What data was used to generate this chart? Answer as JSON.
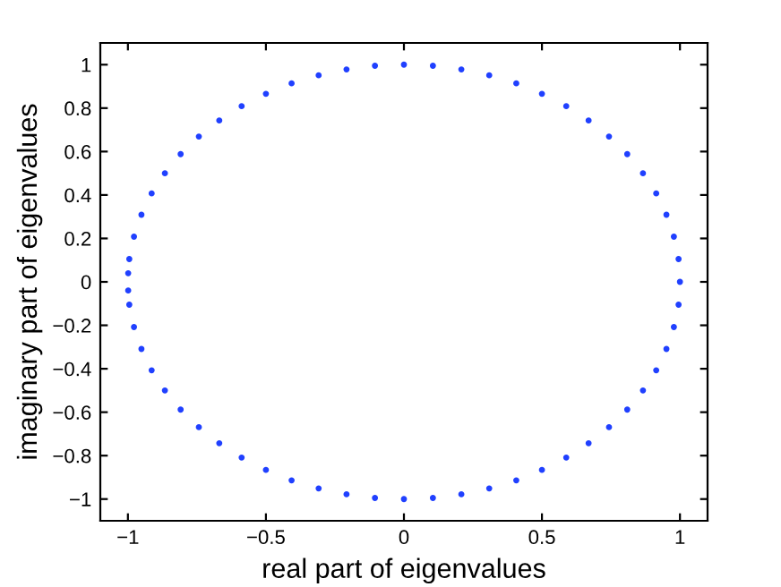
{
  "chart_data": {
    "type": "scatter",
    "xlabel": "real part of eigenvalues",
    "ylabel": "imaginary part of eigenvalues",
    "x": [
      1,
      0.995,
      0.978,
      0.951,
      0.914,
      0.866,
      0.809,
      0.743,
      0.669,
      0.588,
      0.5,
      0.407,
      0.309,
      0.208,
      0.105,
      0,
      -0.105,
      -0.208,
      -0.309,
      -0.407,
      -0.5,
      -0.588,
      -0.669,
      -0.743,
      -0.809,
      -0.866,
      -0.914,
      -0.951,
      -0.978,
      -0.995,
      -0.999,
      -0.999,
      -0.995,
      -0.978,
      -0.951,
      -0.914,
      -0.866,
      -0.809,
      -0.743,
      -0.669,
      -0.588,
      -0.5,
      -0.407,
      -0.309,
      -0.208,
      -0.105,
      0,
      0.105,
      0.208,
      0.309,
      0.407,
      0.5,
      0.588,
      0.669,
      0.743,
      0.809,
      0.866,
      0.914,
      0.951,
      0.978,
      0.995
    ],
    "series": [
      {
        "color": "#2040ff",
        "values": [
          0,
          0.105,
          0.208,
          0.309,
          0.407,
          0.5,
          0.588,
          0.669,
          0.743,
          0.809,
          0.866,
          0.914,
          0.951,
          0.978,
          0.995,
          1,
          0.995,
          0.978,
          0.951,
          0.914,
          0.866,
          0.809,
          0.743,
          0.669,
          0.588,
          0.5,
          0.407,
          0.309,
          0.208,
          0.105,
          0.04,
          -0.04,
          -0.105,
          -0.208,
          -0.309,
          -0.407,
          -0.5,
          -0.588,
          -0.669,
          -0.743,
          -0.809,
          -0.866,
          -0.914,
          -0.951,
          -0.978,
          -0.995,
          -1,
          -0.995,
          -0.978,
          -0.951,
          -0.914,
          -0.866,
          -0.809,
          -0.743,
          -0.669,
          -0.588,
          -0.5,
          -0.407,
          -0.309,
          -0.208,
          -0.105
        ]
      }
    ],
    "xlim": [
      -1.1,
      1.1
    ],
    "ylim": [
      -1.1,
      1.1
    ],
    "xticks": [
      {
        "value": -1,
        "label": "−1"
      },
      {
        "value": -0.5,
        "label": "−0.5"
      },
      0,
      0.5,
      1
    ],
    "yticks": [
      {
        "value": -1,
        "label": "−1"
      },
      {
        "value": -0.8,
        "label": "−0.8"
      },
      {
        "value": -0.6,
        "label": "−0.6"
      },
      {
        "value": -0.4,
        "label": "−0.4"
      },
      {
        "value": -0.2,
        "label": "−0.2"
      },
      0,
      0.2,
      0.4,
      0.6,
      0.8,
      1
    ],
    "marker": "circle",
    "grid": false,
    "legend": false
  }
}
